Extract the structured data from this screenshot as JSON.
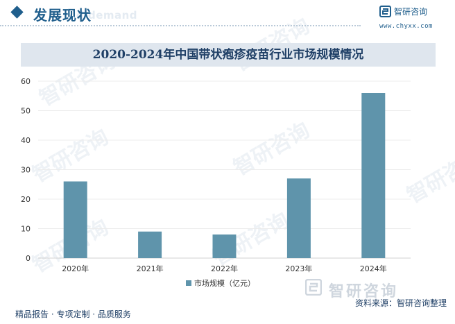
{
  "header": {
    "section_title": "发展现状",
    "section_subtitle": "d demand",
    "brand_name": "智研咨询",
    "brand_url": "www.chyxx.com",
    "watermark_text": "智研咨询",
    "bottom_watermark_text": "智研咨询"
  },
  "footer": {
    "left": "精品报告 · 专项定制 · 品质服务",
    "source": "资料来源：智研咨询整理"
  },
  "colors": {
    "bar": "#5f94ab",
    "title_band": "#dfe6ee",
    "brand": "#1f5e8c"
  },
  "chart_data": {
    "type": "bar",
    "title": "2020-2024年中国带状疱疹疫苗行业市场规模情况",
    "categories": [
      "2020年",
      "2021年",
      "2022年",
      "2023年",
      "2024年"
    ],
    "series": [
      {
        "name": "市场规模（亿元）",
        "values": [
          26,
          9,
          8,
          27,
          56
        ]
      }
    ],
    "xlabel": "",
    "ylabel": "",
    "ylim": [
      0,
      60
    ],
    "yticks": [
      0,
      10,
      20,
      30,
      40,
      50,
      60
    ],
    "grid": true,
    "legend": "bottom-center"
  }
}
